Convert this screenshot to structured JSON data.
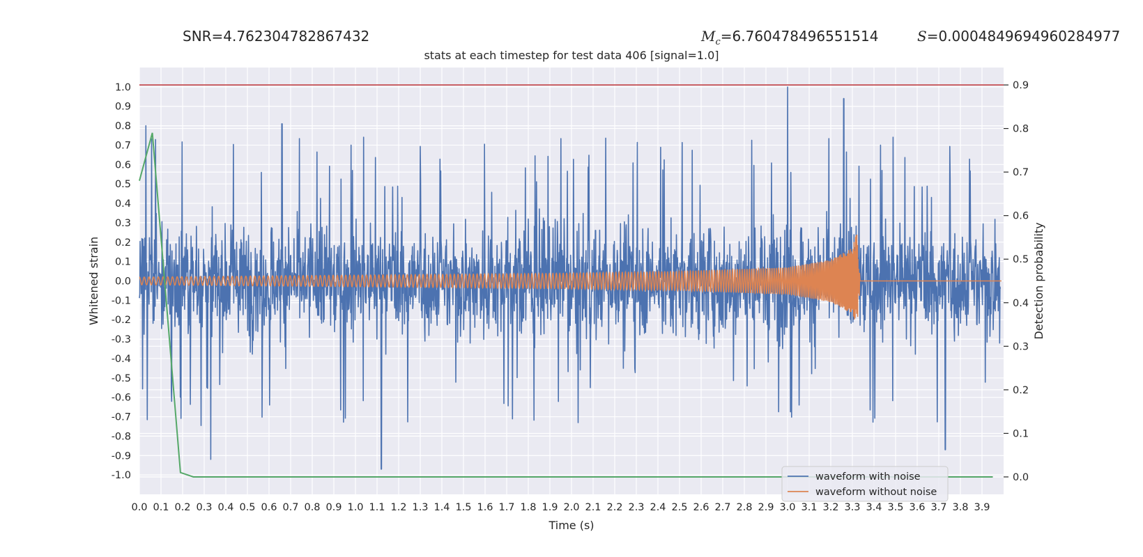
{
  "header": {
    "snr_label": "SNR=4.762304782867432",
    "mc_symbol": "M",
    "mc_subscript": "c",
    "mc_value": "=6.760478496551514",
    "s_symbol": "S",
    "s_value": "=0.0004849694960284977"
  },
  "chart_data": {
    "type": "line",
    "title": "stats at each timestep for test data 406 [signal=1.0]",
    "xlabel": "Time (s)",
    "ylabel": "Whitened strain",
    "y2label": "Detection probability",
    "xlim": [
      0.0,
      4.0
    ],
    "ylim": [
      -1.1,
      1.1
    ],
    "y2lim": [
      -0.04,
      0.94
    ],
    "grid": true,
    "legend_position": "lower-right",
    "x_ticks": [
      "0.0",
      "0.1",
      "0.2",
      "0.3",
      "0.4",
      "0.5",
      "0.6",
      "0.7",
      "0.8",
      "0.9",
      "1.0",
      "1.1",
      "1.2",
      "1.3",
      "1.4",
      "1.5",
      "1.6",
      "1.7",
      "1.8",
      "1.9",
      "2.0",
      "2.1",
      "2.2",
      "2.3",
      "2.4",
      "2.5",
      "2.6",
      "2.7",
      "2.8",
      "2.9",
      "3.0",
      "3.1",
      "3.2",
      "3.3",
      "3.4",
      "3.5",
      "3.6",
      "3.7",
      "3.8",
      "3.9"
    ],
    "y_ticks": [
      "1.0",
      "0.9",
      "0.8",
      "0.7",
      "0.6",
      "0.5",
      "0.4",
      "0.3",
      "0.2",
      "0.1",
      "0.0",
      "-0.1",
      "-0.2",
      "-0.3",
      "-0.4",
      "-0.5",
      "-0.6",
      "-0.7",
      "-0.8",
      "-0.9",
      "-1.0"
    ],
    "y2_ticks": [
      "0.9",
      "0.8",
      "0.7",
      "0.6",
      "0.5",
      "0.4",
      "0.3",
      "0.2",
      "0.1",
      "0.0"
    ],
    "series": [
      {
        "name": "waveform with noise",
        "color": "#4c72b0",
        "axis": "left",
        "description_values": "dense noisy strain, amplitude mostly within ±0.5, spikes reaching 1.0 near 3.0 s and -0.97 near 1.12 s",
        "x": [
          0.03,
          0.33,
          0.66,
          1.12,
          3.0,
          3.26,
          3.73
        ],
        "y": [
          0.8,
          -0.92,
          0.81,
          -0.97,
          1.0,
          0.94,
          -0.87
        ]
      },
      {
        "name": "waveform without noise",
        "color": "#dd8452",
        "axis": "left",
        "x": [
          0.0,
          1.0,
          2.0,
          2.5,
          3.0,
          3.2,
          3.3,
          3.32,
          3.34,
          4.0
        ],
        "y": [
          0.02,
          0.03,
          0.04,
          0.05,
          0.07,
          0.11,
          0.17,
          0.25,
          0.0,
          0.0
        ]
      },
      {
        "name": "",
        "color": "#55a868",
        "axis": "right",
        "x": [
          0.0,
          0.06,
          0.19,
          0.25,
          1.12,
          3.95
        ],
        "y": [
          0.68,
          0.79,
          0.01,
          0.0,
          0.0,
          0.0
        ]
      }
    ],
    "threshold_line": {
      "color": "#c44e52",
      "axis": "right",
      "y": 0.9
    }
  }
}
